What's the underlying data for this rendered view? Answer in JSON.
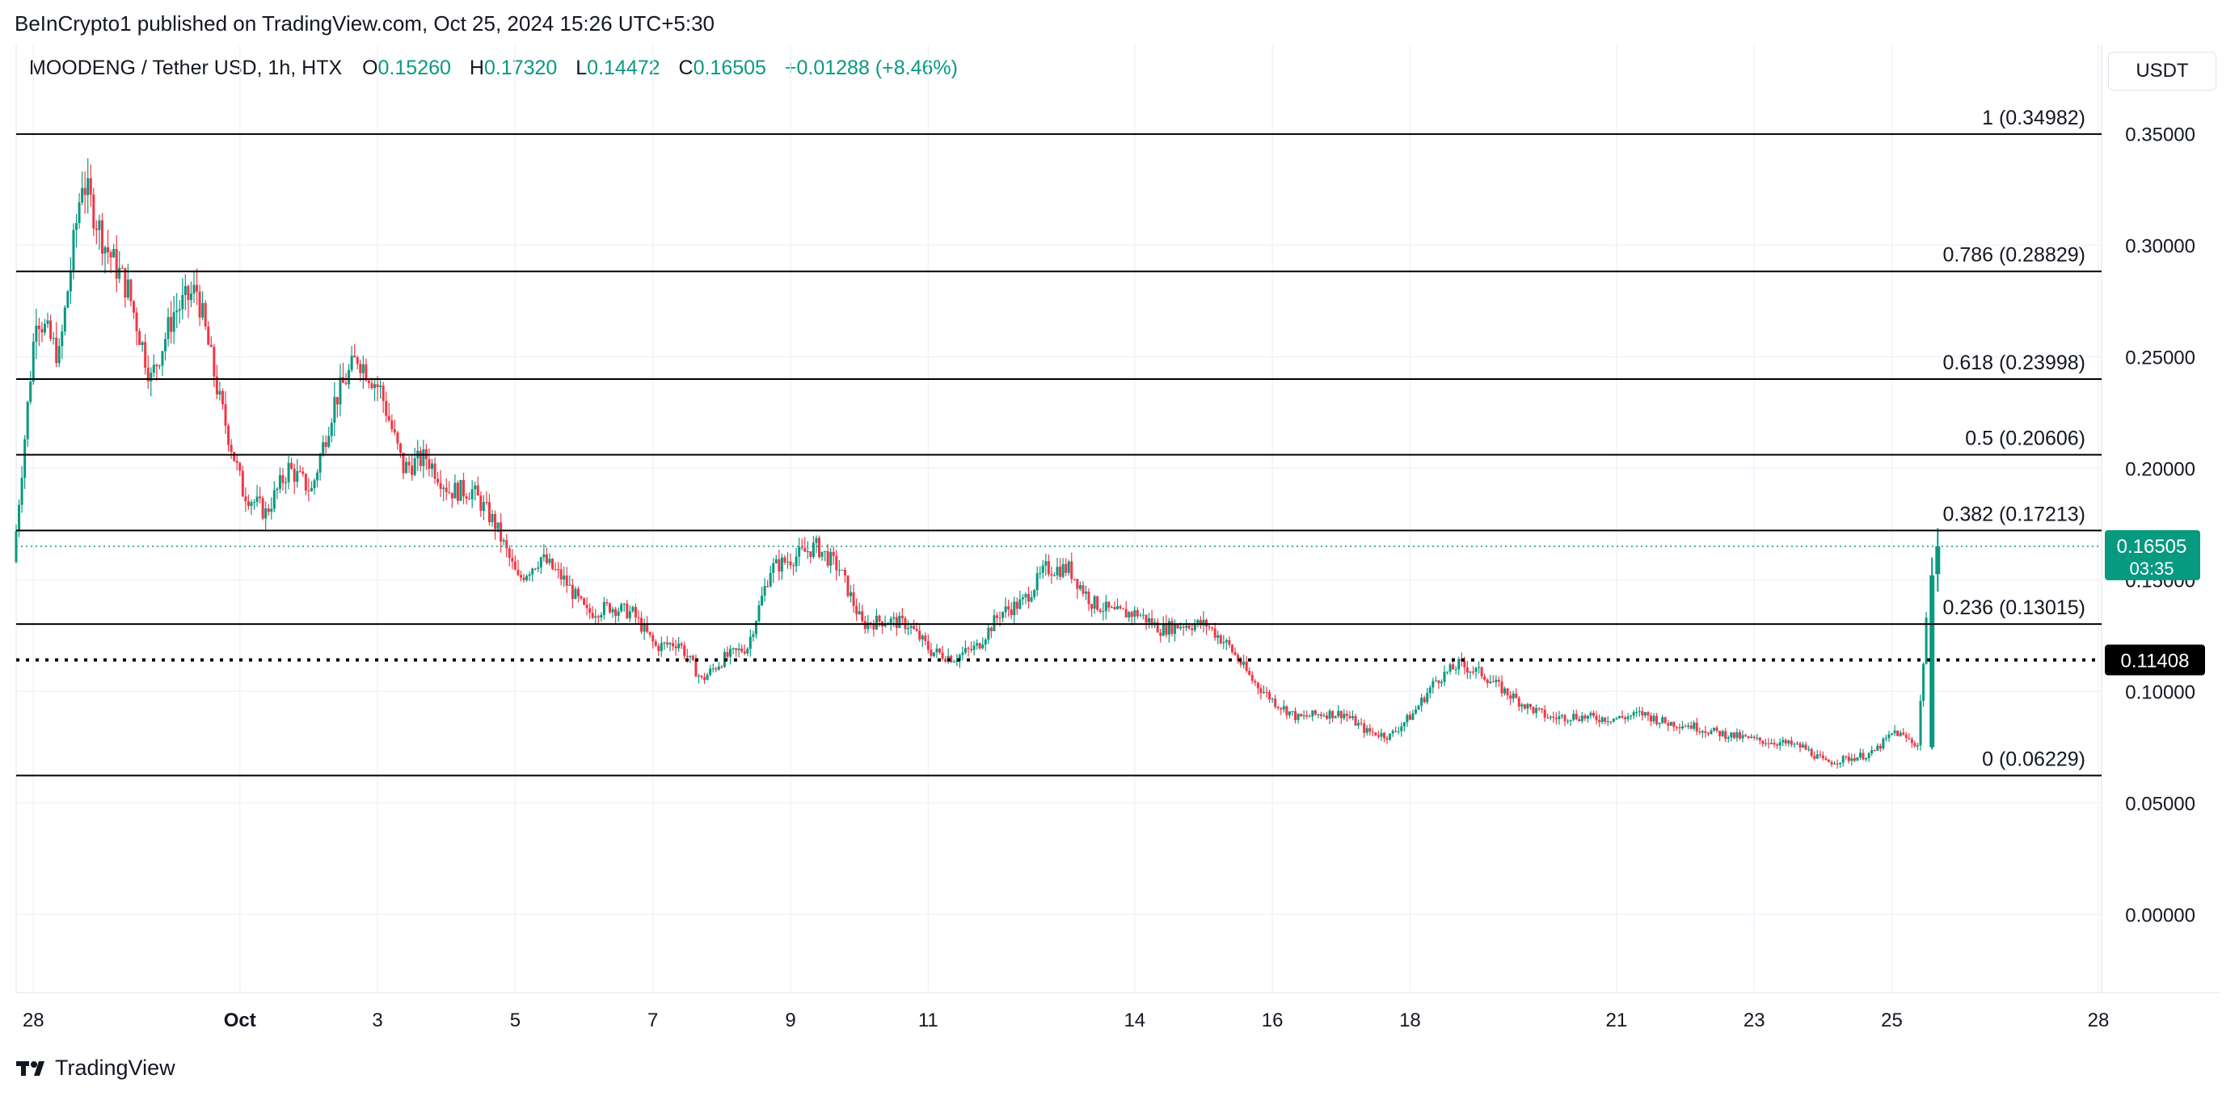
{
  "header": {
    "published_line": "BeInCrypto1 published on TradingView.com, Oct 25, 2024 15:26 UTC+5:30"
  },
  "legend": {
    "symbol": "MOODENG / Tether USD, 1h, HTX",
    "open_label": "O",
    "open": "0.15260",
    "high_label": "H",
    "high": "0.17320",
    "low_label": "L",
    "low": "0.14472",
    "close_label": "C",
    "close": "0.16505",
    "change": "+0.01288 (+8.46%)"
  },
  "currency_button": "USDT",
  "brand": {
    "name": "TradingView",
    "logo_icon": "tradingview-logo-icon"
  },
  "colors": {
    "up": "#089981",
    "down": "#f23645",
    "grid": "#f0f3fa",
    "text": "#131722",
    "fib_line": "#000000",
    "price_line": "#089981"
  },
  "chart_data": {
    "type": "candlestick",
    "title": "MOODENG / Tether USD, 1h, HTX",
    "ylim": [
      -0.035,
      0.39
    ],
    "y_ticks": [
      {
        "value": 0.35,
        "label": "0.35000"
      },
      {
        "value": 0.3,
        "label": "0.30000"
      },
      {
        "value": 0.25,
        "label": "0.25000"
      },
      {
        "value": 0.2,
        "label": "0.20000"
      },
      {
        "value": 0.15,
        "label": "0.15000"
      },
      {
        "value": 0.1,
        "label": "0.10000"
      },
      {
        "value": 0.05,
        "label": "0.05000"
      },
      {
        "value": 0.0,
        "label": "0.00000"
      }
    ],
    "x_domain": [
      "2024-09-27T18:00",
      "2024-10-28T00:00"
    ],
    "x_ticks": [
      {
        "date": "2024-09-28",
        "label": "28",
        "bold": false
      },
      {
        "date": "2024-10-01",
        "label": "Oct",
        "bold": true
      },
      {
        "date": "2024-10-03",
        "label": "3",
        "bold": false
      },
      {
        "date": "2024-10-05",
        "label": "5",
        "bold": false
      },
      {
        "date": "2024-10-07",
        "label": "7",
        "bold": false
      },
      {
        "date": "2024-10-09",
        "label": "9",
        "bold": false
      },
      {
        "date": "2024-10-11",
        "label": "11",
        "bold": false
      },
      {
        "date": "2024-10-14",
        "label": "14",
        "bold": false
      },
      {
        "date": "2024-10-16",
        "label": "16",
        "bold": false
      },
      {
        "date": "2024-10-18",
        "label": "18",
        "bold": false
      },
      {
        "date": "2024-10-21",
        "label": "21",
        "bold": false
      },
      {
        "date": "2024-10-23",
        "label": "23",
        "bold": false
      },
      {
        "date": "2024-10-25",
        "label": "25",
        "bold": false
      },
      {
        "date": "2024-10-28",
        "label": "28",
        "bold": false
      }
    ],
    "fib_levels": [
      {
        "ratio": "1",
        "value": 0.34982,
        "label": "1 (0.34982)"
      },
      {
        "ratio": "0.786",
        "value": 0.28829,
        "label": "0.786 (0.28829)"
      },
      {
        "ratio": "0.618",
        "value": 0.23998,
        "label": "0.618 (0.23998)"
      },
      {
        "ratio": "0.5",
        "value": 0.20606,
        "label": "0.5 (0.20606)"
      },
      {
        "ratio": "0.382",
        "value": 0.17213,
        "label": "0.382 (0.17213)"
      },
      {
        "ratio": "0.236",
        "value": 0.13015,
        "label": "0.236 (0.13015)"
      },
      {
        "ratio": "0",
        "value": 0.06229,
        "label": "0 (0.06229)"
      }
    ],
    "support_line": {
      "value": 0.11408,
      "label": "0.11408",
      "style": "dotted"
    },
    "last_price": {
      "value": 0.16505,
      "label": "0.16505",
      "countdown": "03:35"
    },
    "series": [
      {
        "t": "2024-09-27T18:00",
        "close": 0.158
      },
      {
        "t": "2024-09-28T02:00",
        "close": 0.27
      },
      {
        "t": "2024-09-28T10:00",
        "close": 0.25
      },
      {
        "t": "2024-09-28T18:00",
        "close": 0.33
      },
      {
        "t": "2024-09-29T02:00",
        "close": 0.3
      },
      {
        "t": "2024-09-29T10:00",
        "close": 0.28
      },
      {
        "t": "2024-09-29T18:00",
        "close": 0.24
      },
      {
        "t": "2024-09-30T02:00",
        "close": 0.27
      },
      {
        "t": "2024-09-30T10:00",
        "close": 0.28
      },
      {
        "t": "2024-09-30T18:00",
        "close": 0.23
      },
      {
        "t": "2024-10-01T02:00",
        "close": 0.19
      },
      {
        "t": "2024-10-01T10:00",
        "close": 0.18
      },
      {
        "t": "2024-10-01T18:00",
        "close": 0.2
      },
      {
        "t": "2024-10-02T02:00",
        "close": 0.19
      },
      {
        "t": "2024-10-02T10:00",
        "close": 0.23
      },
      {
        "t": "2024-10-02T18:00",
        "close": 0.25
      },
      {
        "t": "2024-10-03T02:00",
        "close": 0.235
      },
      {
        "t": "2024-10-03T10:00",
        "close": 0.2
      },
      {
        "t": "2024-10-03T18:00",
        "close": 0.205
      },
      {
        "t": "2024-10-04T02:00",
        "close": 0.19
      },
      {
        "t": "2024-10-04T10:00",
        "close": 0.19
      },
      {
        "t": "2024-10-04T18:00",
        "close": 0.175
      },
      {
        "t": "2024-10-05T02:00",
        "close": 0.15
      },
      {
        "t": "2024-10-05T10:00",
        "close": 0.16
      },
      {
        "t": "2024-10-05T18:00",
        "close": 0.15
      },
      {
        "t": "2024-10-06T02:00",
        "close": 0.135
      },
      {
        "t": "2024-10-06T10:00",
        "close": 0.138
      },
      {
        "t": "2024-10-06T18:00",
        "close": 0.135
      },
      {
        "t": "2024-10-07T02:00",
        "close": 0.12
      },
      {
        "t": "2024-10-07T10:00",
        "close": 0.122
      },
      {
        "t": "2024-10-07T18:00",
        "close": 0.105
      },
      {
        "t": "2024-10-08T02:00",
        "close": 0.115
      },
      {
        "t": "2024-10-08T10:00",
        "close": 0.12
      },
      {
        "t": "2024-10-08T18:00",
        "close": 0.155
      },
      {
        "t": "2024-10-09T02:00",
        "close": 0.16
      },
      {
        "t": "2024-10-09T10:00",
        "close": 0.165
      },
      {
        "t": "2024-10-09T18:00",
        "close": 0.155
      },
      {
        "t": "2024-10-10T02:00",
        "close": 0.13
      },
      {
        "t": "2024-10-10T10:00",
        "close": 0.132
      },
      {
        "t": "2024-10-10T18:00",
        "close": 0.13
      },
      {
        "t": "2024-10-11T02:00",
        "close": 0.118
      },
      {
        "t": "2024-10-11T10:00",
        "close": 0.115
      },
      {
        "t": "2024-10-11T18:00",
        "close": 0.12
      },
      {
        "t": "2024-10-12T02:00",
        "close": 0.135
      },
      {
        "t": "2024-10-12T10:00",
        "close": 0.14
      },
      {
        "t": "2024-10-12T18:00",
        "close": 0.155
      },
      {
        "t": "2024-10-13T02:00",
        "close": 0.155
      },
      {
        "t": "2024-10-13T10:00",
        "close": 0.14
      },
      {
        "t": "2024-10-13T18:00",
        "close": 0.135
      },
      {
        "t": "2024-10-14T02:00",
        "close": 0.135
      },
      {
        "t": "2024-10-14T10:00",
        "close": 0.128
      },
      {
        "t": "2024-10-14T18:00",
        "close": 0.13
      },
      {
        "t": "2024-10-15T02:00",
        "close": 0.13
      },
      {
        "t": "2024-10-15T10:00",
        "close": 0.12
      },
      {
        "t": "2024-10-15T18:00",
        "close": 0.105
      },
      {
        "t": "2024-10-16T02:00",
        "close": 0.095
      },
      {
        "t": "2024-10-16T10:00",
        "close": 0.088
      },
      {
        "t": "2024-10-16T18:00",
        "close": 0.09
      },
      {
        "t": "2024-10-17T02:00",
        "close": 0.09
      },
      {
        "t": "2024-10-17T10:00",
        "close": 0.082
      },
      {
        "t": "2024-10-17T18:00",
        "close": 0.08
      },
      {
        "t": "2024-10-18T02:00",
        "close": 0.09
      },
      {
        "t": "2024-10-18T10:00",
        "close": 0.105
      },
      {
        "t": "2024-10-18T18:00",
        "close": 0.112
      },
      {
        "t": "2024-10-19T02:00",
        "close": 0.108
      },
      {
        "t": "2024-10-19T10:00",
        "close": 0.1
      },
      {
        "t": "2024-10-19T18:00",
        "close": 0.093
      },
      {
        "t": "2024-10-20T02:00",
        "close": 0.088
      },
      {
        "t": "2024-10-20T10:00",
        "close": 0.089
      },
      {
        "t": "2024-10-20T18:00",
        "close": 0.088
      },
      {
        "t": "2024-10-21T02:00",
        "close": 0.088
      },
      {
        "t": "2024-10-21T10:00",
        "close": 0.09
      },
      {
        "t": "2024-10-21T18:00",
        "close": 0.086
      },
      {
        "t": "2024-10-22T02:00",
        "close": 0.085
      },
      {
        "t": "2024-10-22T10:00",
        "close": 0.082
      },
      {
        "t": "2024-10-22T18:00",
        "close": 0.08
      },
      {
        "t": "2024-10-23T02:00",
        "close": 0.078
      },
      {
        "t": "2024-10-23T10:00",
        "close": 0.077
      },
      {
        "t": "2024-10-23T18:00",
        "close": 0.075
      },
      {
        "t": "2024-10-24T02:00",
        "close": 0.068
      },
      {
        "t": "2024-10-24T10:00",
        "close": 0.07
      },
      {
        "t": "2024-10-24T18:00",
        "close": 0.072
      },
      {
        "t": "2024-10-25T02:00",
        "close": 0.082
      },
      {
        "t": "2024-10-25T10:00",
        "close": 0.076
      },
      {
        "t": "2024-10-25T14:00",
        "close": 0.152
      },
      {
        "t": "2024-10-25T16:00",
        "close": 0.16505
      }
    ]
  }
}
